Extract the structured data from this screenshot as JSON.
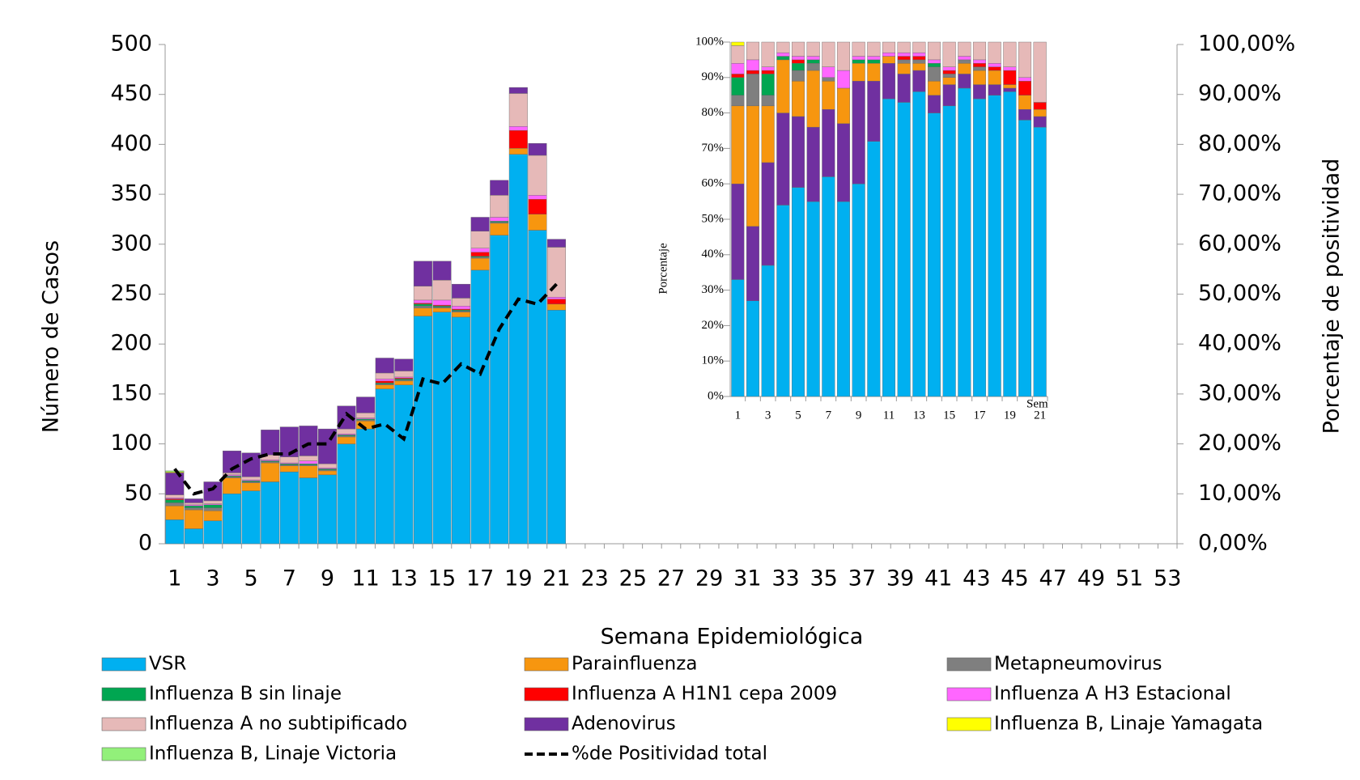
{
  "chart_data": [
    {
      "type": "bar",
      "stacked": true,
      "xlabel": "Semana Epidemiológica",
      "ylabel": "Número de Casos",
      "y2label": "Porcentaje  de positividad",
      "categories": [
        "1",
        null,
        "3",
        null,
        "5",
        null,
        "7",
        null,
        "9",
        null,
        "11",
        null,
        "13",
        null,
        "15",
        null,
        "17",
        null,
        "19",
        null,
        "21",
        null,
        "23",
        null,
        "25",
        null,
        "27",
        null,
        "29",
        null,
        "31",
        null,
        "33",
        null,
        "35",
        null,
        "37",
        null,
        "39",
        null,
        "41",
        null,
        "43",
        null,
        "45",
        null,
        "47",
        null,
        "49",
        null,
        "51",
        null,
        "53"
      ],
      "ylim": [
        0,
        500
      ],
      "yticks": [
        0,
        50,
        100,
        150,
        200,
        250,
        300,
        350,
        400,
        450,
        500
      ],
      "y2lim": [
        0,
        100
      ],
      "y2ticks": [
        {
          "value": 0,
          "label": "0,00%"
        },
        {
          "value": 10,
          "label": "10,00%"
        },
        {
          "value": 20,
          "label": "20,00%"
        },
        {
          "value": 30,
          "label": "30,00%"
        },
        {
          "value": 40,
          "label": "40,00%"
        },
        {
          "value": 50,
          "label": "50,00%"
        },
        {
          "value": 60,
          "label": "60,00%"
        },
        {
          "value": 70,
          "label": "70,00%"
        },
        {
          "value": 80,
          "label": "80,00%"
        },
        {
          "value": 90,
          "label": "90,00%"
        },
        {
          "value": 100,
          "label": "100,00%"
        }
      ],
      "series": [
        {
          "name": "VSR",
          "color": "#00b0f0",
          "values": [
            24,
            15,
            23,
            50,
            53,
            62,
            72,
            66,
            69,
            100,
            115,
            155,
            159,
            228,
            232,
            227,
            274,
            309,
            390,
            314,
            234,
            null,
            null,
            null,
            null,
            null,
            null,
            null,
            null,
            null,
            null,
            null,
            null,
            null,
            null,
            null,
            null,
            null,
            null,
            null,
            null,
            null,
            null,
            null,
            null,
            null,
            null,
            null,
            null,
            null,
            null,
            null,
            null
          ]
        },
        {
          "name": "Parainfluenza",
          "color": "#f7960f",
          "values": [
            14,
            19,
            10,
            16,
            8,
            19,
            6,
            12,
            4,
            7,
            8,
            4,
            4,
            8,
            4,
            5,
            12,
            12,
            6,
            16,
            6,
            null,
            null,
            null,
            null,
            null,
            null,
            null,
            null,
            null,
            null,
            null,
            null,
            null,
            null,
            null,
            null,
            null,
            null,
            null,
            null,
            null,
            null,
            null,
            null,
            null,
            null,
            null,
            null,
            null,
            null,
            null,
            null
          ]
        },
        {
          "name": "Metapneumovirus",
          "color": "#7f7f7f",
          "values": [
            3,
            2,
            3,
            1,
            1,
            1,
            1,
            1,
            1,
            1,
            1,
            1,
            1,
            2,
            1,
            1,
            1,
            1,
            0,
            0,
            0,
            null,
            null,
            null,
            null,
            null,
            null,
            null,
            null,
            null,
            null,
            null,
            null,
            null,
            null,
            null,
            null,
            null,
            null,
            null,
            null,
            null,
            null,
            null,
            null,
            null,
            null,
            null,
            null,
            null,
            null,
            null,
            null
          ]
        },
        {
          "name": "Influenza B sin linaje",
          "color": "#00a651",
          "values": [
            3,
            2,
            3,
            1,
            1,
            1,
            1,
            1,
            1,
            1,
            1,
            1,
            1,
            2,
            1,
            1,
            1,
            1,
            0,
            0,
            0,
            null,
            null,
            null,
            null,
            null,
            null,
            null,
            null,
            null,
            null,
            null,
            null,
            null,
            null,
            null,
            null,
            null,
            null,
            null,
            null,
            null,
            null,
            null,
            null,
            null,
            null,
            null,
            null,
            null,
            null,
            null,
            null
          ]
        },
        {
          "name": "Influenza A H1N1 cepa 2009",
          "color": "#ff0000",
          "values": [
            1,
            0,
            0,
            0,
            0,
            0,
            0,
            0,
            0,
            0,
            0,
            2,
            1,
            1,
            1,
            1,
            4,
            0,
            18,
            15,
            5,
            null,
            null,
            null,
            null,
            null,
            null,
            null,
            null,
            null,
            null,
            null,
            null,
            null,
            null,
            null,
            null,
            null,
            null,
            null,
            null,
            null,
            null,
            null,
            null,
            null,
            null,
            null,
            null,
            null,
            null,
            null,
            null
          ]
        },
        {
          "name": " Influenza A H3 Estacional",
          "color": "#ff66ff",
          "values": [
            1,
            1,
            1,
            1,
            1,
            1,
            1,
            3,
            1,
            1,
            1,
            2,
            1,
            3,
            5,
            3,
            4,
            4,
            4,
            4,
            2,
            null,
            null,
            null,
            null,
            null,
            null,
            null,
            null,
            null,
            null,
            null,
            null,
            null,
            null,
            null,
            null,
            null,
            null,
            null,
            null,
            null,
            null,
            null,
            null,
            null,
            null,
            null,
            null,
            null,
            null,
            null,
            null
          ]
        },
        {
          "name": "Influenza A no subtipificado",
          "color": "#e6b9b8",
          "values": [
            3,
            2,
            3,
            2,
            3,
            5,
            6,
            5,
            4,
            5,
            5,
            6,
            6,
            14,
            20,
            8,
            17,
            22,
            33,
            40,
            50,
            null,
            null,
            null,
            null,
            null,
            null,
            null,
            null,
            null,
            null,
            null,
            null,
            null,
            null,
            null,
            null,
            null,
            null,
            null,
            null,
            null,
            null,
            null,
            null,
            null,
            null,
            null,
            null,
            null,
            null,
            null,
            null
          ]
        },
        {
          "name": "Adenovirus",
          "color": "#7030a0",
          "values": [
            22,
            4,
            19,
            22,
            24,
            25,
            30,
            30,
            35,
            23,
            16,
            15,
            12,
            25,
            19,
            14,
            14,
            15,
            6,
            12,
            8,
            null,
            null,
            null,
            null,
            null,
            null,
            null,
            null,
            null,
            null,
            null,
            null,
            null,
            null,
            null,
            null,
            null,
            null,
            null,
            null,
            null,
            null,
            null,
            null,
            null,
            null,
            null,
            null,
            null,
            null,
            null,
            null
          ]
        },
        {
          "name": "Influenza B, Linaje Yamagata",
          "color": "#ffff00",
          "values": [
            1,
            0,
            0,
            0,
            0,
            0,
            0,
            0,
            0,
            0,
            0,
            0,
            0,
            0,
            0,
            0,
            0,
            0,
            0,
            0,
            0,
            null,
            null,
            null,
            null,
            null,
            null,
            null,
            null,
            null,
            null,
            null,
            null,
            null,
            null,
            null,
            null,
            null,
            null,
            null,
            null,
            null,
            null,
            null,
            null,
            null,
            null,
            null,
            null,
            null,
            null,
            null,
            null
          ]
        },
        {
          "name": "Influenza B, Linaje Victoria",
          "color": "#92f07a",
          "values": [
            1,
            0,
            0,
            0,
            0,
            0,
            0,
            0,
            0,
            0,
            0,
            0,
            0,
            0,
            0,
            0,
            0,
            0,
            0,
            0,
            0,
            null,
            null,
            null,
            null,
            null,
            null,
            null,
            null,
            null,
            null,
            null,
            null,
            null,
            null,
            null,
            null,
            null,
            null,
            null,
            null,
            null,
            null,
            null,
            null,
            null,
            null,
            null,
            null,
            null,
            null,
            null,
            null
          ]
        },
        {
          "name": "%de Positividad total",
          "type": "line",
          "axis": "y2",
          "dashed": true,
          "color": "#000000",
          "values": [
            15,
            10,
            11,
            15,
            17,
            18,
            18,
            20,
            20,
            26,
            23,
            24,
            21,
            33,
            32,
            36,
            34,
            43,
            49,
            48,
            52,
            null,
            null,
            null,
            null,
            null,
            null,
            null,
            null,
            null,
            null,
            null,
            null,
            null,
            null,
            null,
            null,
            null,
            null,
            null,
            null,
            null,
            null,
            null,
            null,
            null,
            null,
            null,
            null,
            null,
            null,
            null,
            null
          ]
        }
      ]
    },
    {
      "type": "bar",
      "stacked": true,
      "ylabel": "Porcentaje",
      "xlabel": "Sem",
      "categories": [
        "1",
        null,
        "3",
        null,
        "5",
        null,
        "7",
        null,
        "9",
        null,
        "11",
        null,
        "13",
        null,
        "15",
        null,
        "17",
        null,
        "19",
        null,
        "21"
      ],
      "ylim": [
        0,
        100
      ],
      "yticks": [
        {
          "value": 0,
          "label": "0%"
        },
        {
          "value": 10,
          "label": "10%"
        },
        {
          "value": 20,
          "label": "20%"
        },
        {
          "value": 30,
          "label": "30%"
        },
        {
          "value": 40,
          "label": "40%"
        },
        {
          "value": 50,
          "label": "50%"
        },
        {
          "value": 60,
          "label": "60%"
        },
        {
          "value": 70,
          "label": "70%"
        },
        {
          "value": 80,
          "label": "80%"
        },
        {
          "value": 90,
          "label": "90%"
        },
        {
          "value": 100,
          "label": "100%"
        }
      ],
      "series": [
        {
          "color": "#00b0f0",
          "values": [
            33,
            27,
            37,
            54,
            59,
            55,
            62,
            55,
            60,
            72,
            84,
            83,
            86,
            80,
            82,
            87,
            84,
            85,
            86,
            78,
            76
          ]
        },
        {
          "color": "#7030a0",
          "values": [
            27,
            21,
            29,
            26,
            20,
            21,
            19,
            22,
            29,
            17,
            10,
            8,
            6,
            5,
            6,
            4,
            4,
            3,
            1,
            3,
            3
          ]
        },
        {
          "color": "#f7960f",
          "values": [
            22,
            34,
            16,
            15,
            10,
            16,
            8,
            10,
            5,
            5,
            2,
            3,
            2,
            4,
            2,
            3,
            4,
            4,
            1,
            4,
            2
          ]
        },
        {
          "color": "#7f7f7f",
          "values": [
            3,
            9,
            3,
            0,
            3,
            2,
            1,
            0,
            0,
            0,
            0,
            1,
            1,
            4,
            1,
            1,
            1,
            0,
            0,
            0,
            0
          ]
        },
        {
          "color": "#00a651",
          "values": [
            5,
            0,
            6,
            1,
            2,
            1,
            0,
            0,
            1,
            1,
            0,
            0,
            0,
            1,
            0,
            0,
            0,
            0,
            0,
            0,
            0
          ]
        },
        {
          "color": "#ff0000",
          "values": [
            1,
            1,
            1,
            0,
            1,
            0,
            0,
            0,
            0,
            0,
            0,
            1,
            1,
            0,
            1,
            0,
            1,
            1,
            4,
            4,
            2
          ]
        },
        {
          "color": "#ff66ff",
          "values": [
            3,
            3,
            1,
            1,
            1,
            1,
            3,
            5,
            1,
            1,
            1,
            1,
            1,
            1,
            1,
            1,
            1,
            1,
            1,
            1,
            0
          ]
        },
        {
          "color": "#e6b9b8",
          "values": [
            5,
            5,
            7,
            3,
            4,
            4,
            7,
            8,
            4,
            4,
            3,
            3,
            3,
            5,
            7,
            4,
            5,
            6,
            7,
            10,
            17
          ]
        },
        {
          "color": "#ffff00",
          "values": [
            1,
            0,
            0,
            0,
            0,
            0,
            0,
            0,
            0,
            0,
            0,
            0,
            0,
            0,
            0,
            0,
            0,
            0,
            0,
            0,
            0
          ]
        }
      ]
    }
  ]
}
